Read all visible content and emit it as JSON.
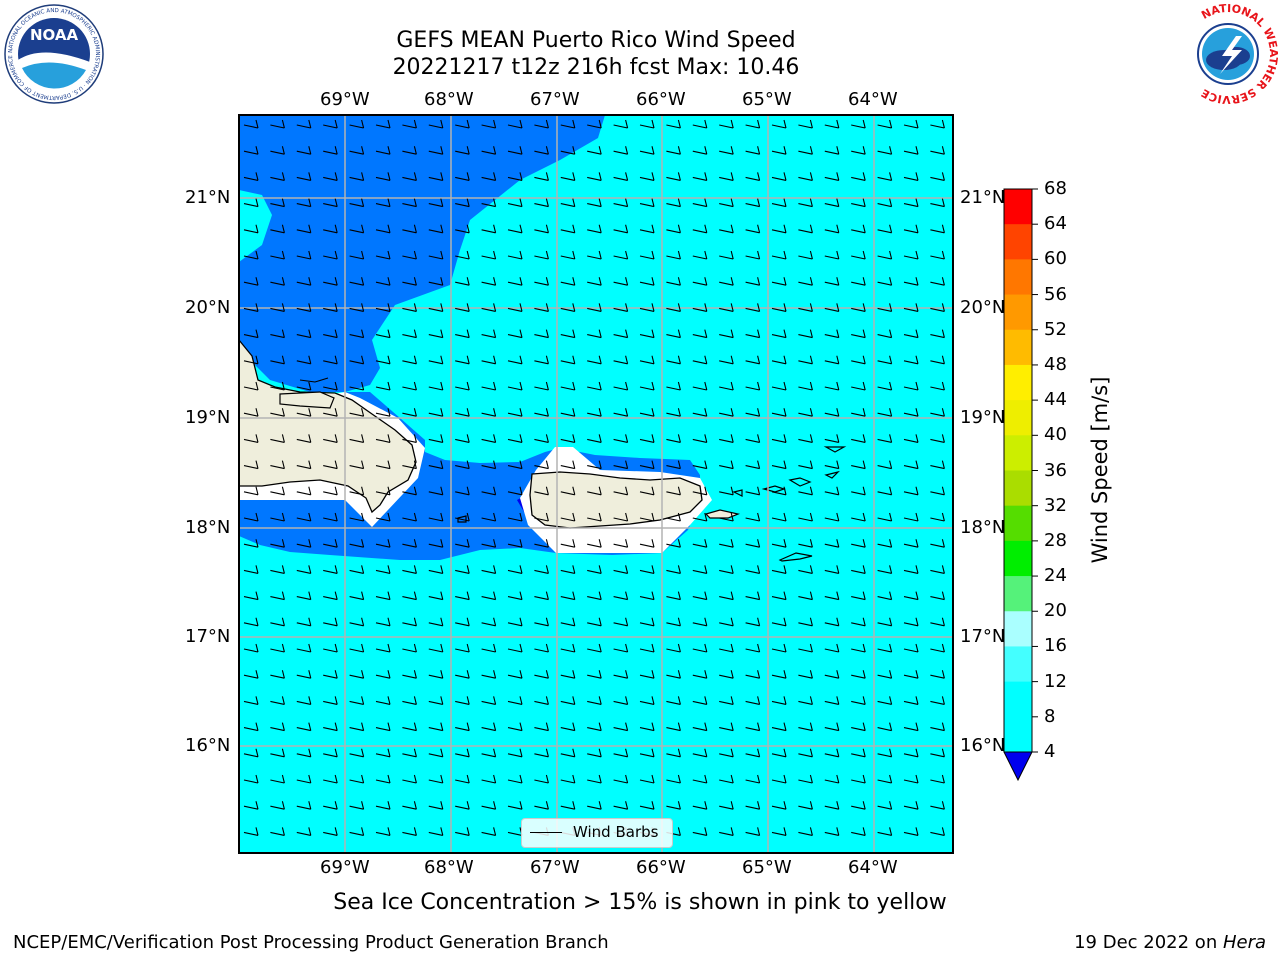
{
  "title_line1": "GEFS MEAN Puerto Rico Wind Speed",
  "title_line2": "20221217 t12z 216h fcst   Max: 10.46",
  "longitude_labels": [
    "69°W",
    "68°W",
    "67°W",
    "66°W",
    "65°W",
    "64°W"
  ],
  "latitude_labels": [
    "21°N",
    "20°N",
    "19°N",
    "18°N",
    "17°N",
    "16°N"
  ],
  "legend": {
    "label": "Wind Barbs"
  },
  "colorbar": {
    "label": "Wind Speed [m/s]",
    "ticks": [
      "68",
      "64",
      "60",
      "56",
      "52",
      "48",
      "44",
      "40",
      "36",
      "32",
      "28",
      "24",
      "20",
      "16",
      "12",
      "8",
      "4"
    ],
    "colors": [
      "#0000ee",
      "#0077ff",
      "#00ffff",
      "#00ffff",
      "#44ffff",
      "#aaffff",
      "#55f27a",
      "#00ee00",
      "#55dd00",
      "#aadd00",
      "#ccee00",
      "#eeee00",
      "#ffee00",
      "#ffbb00",
      "#ff9900",
      "#ff7700",
      "#ff4400",
      "#ff0000"
    ]
  },
  "caption": "Sea Ice Concentration > 15% is shown in pink to yellow",
  "footer_left": "NCEP/EMC/Verification Post Processing Product Generation Branch",
  "footer_date": "19 Dec 2022 on ",
  "footer_machine": "Hera",
  "logo_noaa": {
    "text": "NOAA",
    "ring": "NATIONAL OCEANIC AND ATMOSPHERIC ADMINISTRATION · U.S. DEPARTMENT OF COMMERCE"
  },
  "logo_nws": {
    "ring": "NATIONAL WEATHER SERVICE"
  },
  "map_colors": {
    "ocean_light": "#00ffff",
    "ocean_mid": "#0077ff",
    "ocean_dark": "#0000ee",
    "land": "#efeedc",
    "grid": "#b3b3b3"
  }
}
